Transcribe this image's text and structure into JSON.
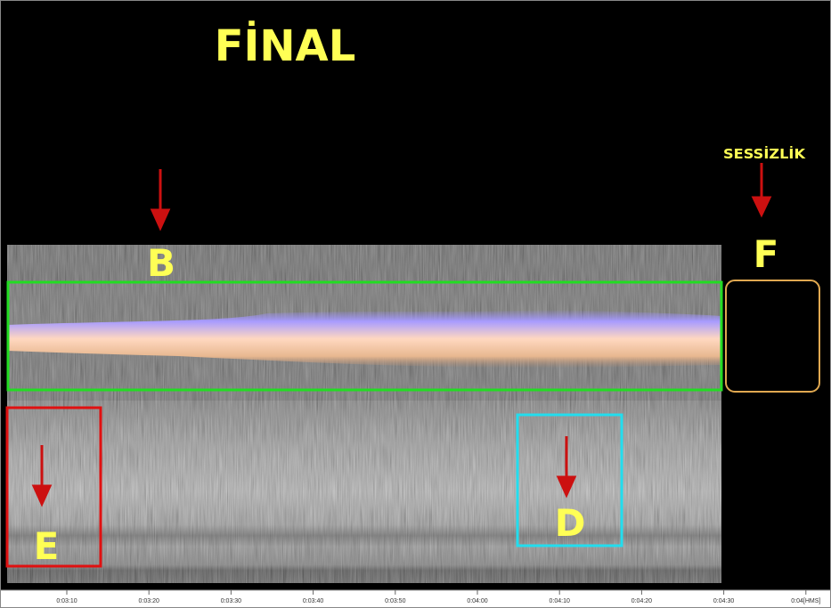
{
  "title": "FİNAL",
  "annotations": {
    "silence": "SESSİZLİK",
    "b": "B",
    "d": "D",
    "e": "E",
    "f": "F"
  },
  "timeline": {
    "labels": [
      "0:03:10",
      "0:03:20",
      "0:03:30",
      "0:03:40",
      "0:03:50",
      "0:04:00",
      "0:04:10",
      "0:04:20",
      "0:04:30",
      "0:04[HMS]"
    ]
  }
}
